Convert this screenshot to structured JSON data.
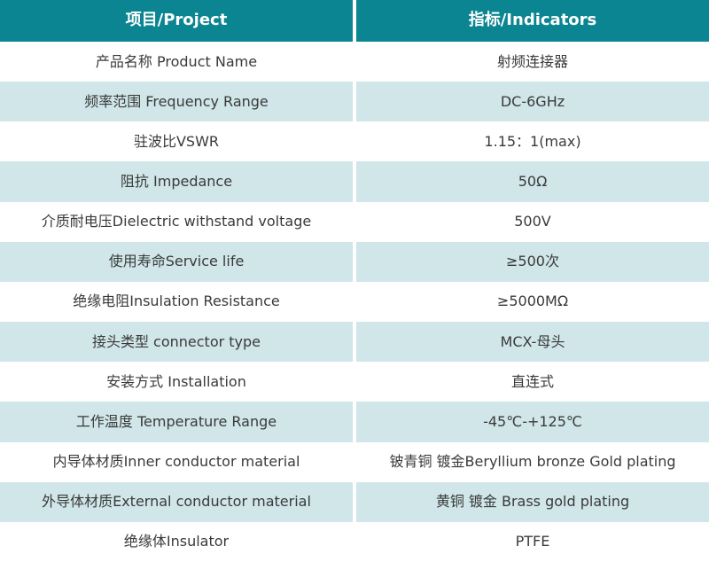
{
  "colors": {
    "header_bg": "#0a8591",
    "alt_row_bg": "#d0e6e9",
    "white_row_bg": "#ffffff",
    "divider": "#ffffff",
    "header_text": "#ffffff",
    "body_text": "#3a3a3a"
  },
  "header": {
    "project_col": "项目/Project",
    "indicators_col": "指标/Indicators"
  },
  "rows": [
    {
      "label": "产品名称 Product Name",
      "value": "射频连接器"
    },
    {
      "label": "频率范围 Frequency Range",
      "value": "DC-6GHz"
    },
    {
      "label": "驻波比VSWR",
      "value": "1.15：1(max)"
    },
    {
      "label": "阻抗 Impedance",
      "value": "50Ω"
    },
    {
      "label": "介质耐电压Dielectric withstand voltage",
      "value": "500V"
    },
    {
      "label": "使用寿命Service life",
      "value": "≥500次"
    },
    {
      "label": "绝缘电阻Insulation Resistance",
      "value": "≥5000MΩ"
    },
    {
      "label": "接头类型  connector type",
      "value": "MCX-母头"
    },
    {
      "label": "安装方式 Installation",
      "value": "直连式"
    },
    {
      "label": "工作温度 Temperature Range",
      "value": "-45℃-+125℃"
    },
    {
      "label": "内导体材质Inner conductor material",
      "value": "铍青铜 镀金Beryllium bronze Gold plating"
    },
    {
      "label": "外导体材质External conductor material",
      "value": "黄铜 镀金 Brass gold plating"
    },
    {
      "label": "绝缘体Insulator",
      "value": "PTFE"
    }
  ]
}
